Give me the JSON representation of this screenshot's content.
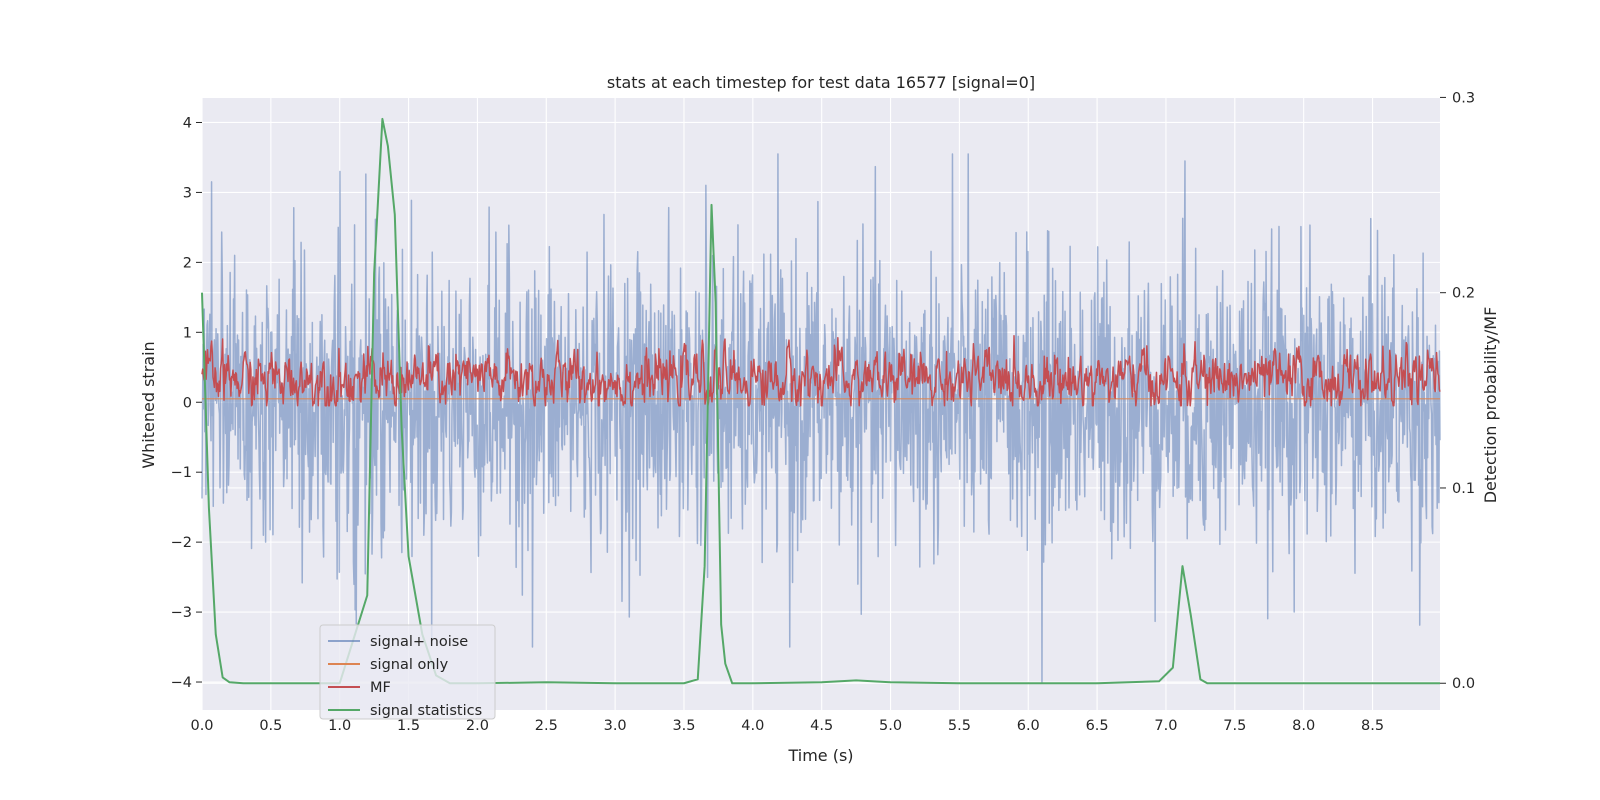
{
  "chart_data": {
    "type": "line",
    "title": "stats at each timestep for test data 16577 [signal=0]",
    "xlabel": "Time (s)",
    "ylabel": "Whitened strain",
    "y2label": "Detection probability/MF",
    "xlim": [
      0.0,
      8.99
    ],
    "ylim": [
      -4.4,
      4.35
    ],
    "y2lim": [
      -0.0137,
      0.2997
    ],
    "x_ticks": [
      "0.0",
      "0.5",
      "1.0",
      "1.5",
      "2.0",
      "2.5",
      "3.0",
      "3.5",
      "4.0",
      "4.5",
      "5.0",
      "5.5",
      "6.0",
      "6.5",
      "7.0",
      "7.5",
      "8.0",
      "8.5"
    ],
    "y_ticks": [
      "4",
      "3",
      "2",
      "1",
      "0",
      "−1",
      "−2",
      "−3",
      "−4"
    ],
    "y2_ticks": [
      "0.3",
      "0.2",
      "0.1",
      "0.0"
    ],
    "grid": true,
    "legend_position": "lower-left",
    "legend": [
      {
        "label": "signal+ noise",
        "color": "#4c72b0"
      },
      {
        "label": "signal only",
        "color": "#dd8452"
      },
      {
        "label": "MF",
        "color": "#c44e52"
      },
      {
        "label": "signal statistics",
        "color": "#55a868"
      }
    ],
    "series": [
      {
        "name": "signal+ noise",
        "axis": "left",
        "color": "#4c72b0",
        "alpha": 0.5,
        "description_range": [
          -4.0,
          3.55
        ],
        "typical_band": [
          -1.5,
          1.5
        ],
        "peaks": [
          [
            0.07,
            3.15
          ],
          [
            1.0,
            3.3
          ],
          [
            3.66,
            3.1
          ],
          [
            5.45,
            3.55
          ],
          [
            7.14,
            3.45
          ],
          [
            6.1,
            -4.0
          ],
          [
            2.4,
            -3.5
          ],
          [
            4.27,
            -3.5
          ]
        ]
      },
      {
        "name": "signal only",
        "axis": "left",
        "color": "#dd8452",
        "constant": 0.05
      },
      {
        "name": "MF",
        "axis": "left",
        "color": "#c44e52",
        "typical_band": [
          0.0,
          0.65
        ],
        "peak": 0.95
      },
      {
        "name": "signal statistics",
        "axis": "right",
        "color": "#55a868",
        "x": [
          0.0,
          0.05,
          0.1,
          0.15,
          0.2,
          0.3,
          0.5,
          1.0,
          1.2,
          1.25,
          1.31,
          1.35,
          1.4,
          1.45,
          1.5,
          1.6,
          1.7,
          1.8,
          2.0,
          2.5,
          3.0,
          3.5,
          3.6,
          3.65,
          3.7,
          3.73,
          3.77,
          3.8,
          3.85,
          4.0,
          4.5,
          4.75,
          5.0,
          5.5,
          6.0,
          6.5,
          6.95,
          7.05,
          7.12,
          7.18,
          7.25,
          7.3,
          7.5,
          8.0,
          8.5,
          8.99
        ],
        "y": [
          0.2,
          0.09,
          0.025,
          0.003,
          0.0005,
          0.0,
          0.0,
          0.0,
          0.045,
          0.21,
          0.289,
          0.275,
          0.24,
          0.13,
          0.065,
          0.025,
          0.004,
          0.0,
          0.0,
          0.0005,
          0.0,
          0.0,
          0.002,
          0.06,
          0.245,
          0.195,
          0.03,
          0.01,
          0.0,
          0.0,
          0.0005,
          0.0015,
          0.0005,
          0.0,
          0.0,
          0.0,
          0.001,
          0.008,
          0.06,
          0.035,
          0.002,
          0.0,
          0.0,
          0.0,
          0.0,
          0.0
        ]
      }
    ]
  }
}
